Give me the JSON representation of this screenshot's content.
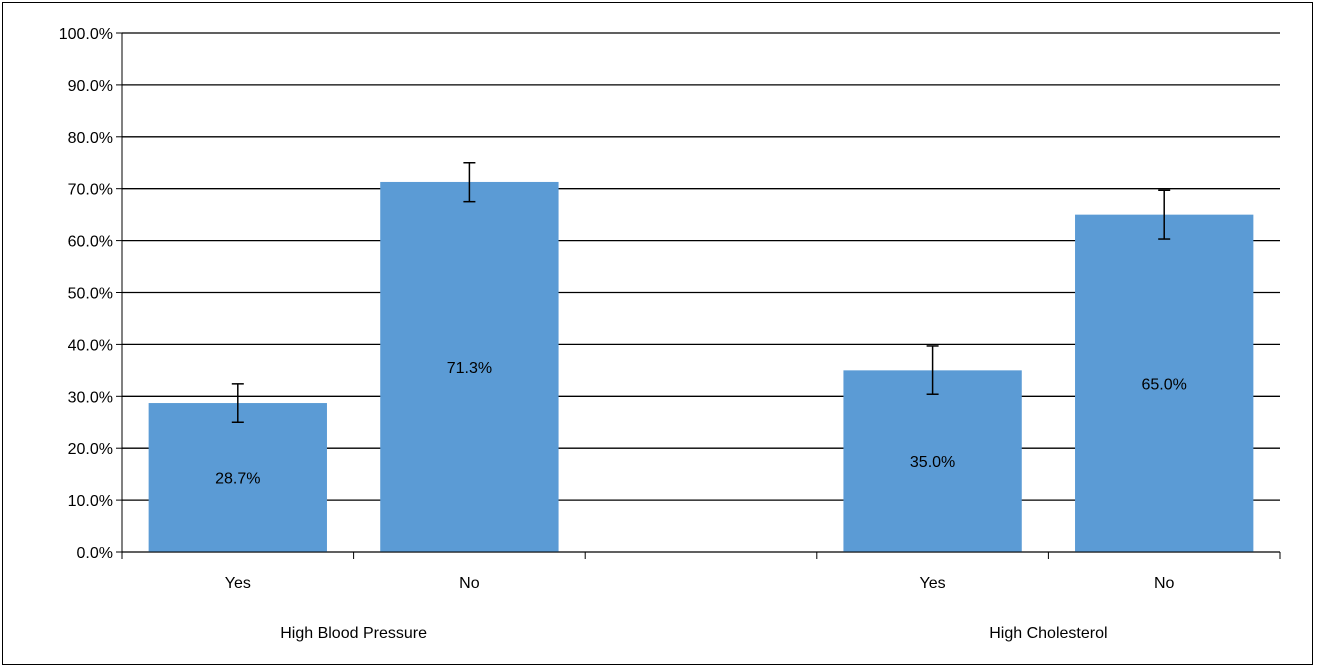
{
  "chart_data": {
    "type": "bar",
    "groups": [
      {
        "name": "High Blood Pressure",
        "categories": [
          "Yes",
          "No"
        ],
        "values": [
          28.7,
          71.3
        ],
        "error_low": [
          25.0,
          67.5
        ],
        "error_high": [
          32.4,
          75.0
        ],
        "labels": [
          "28.7%",
          "71.3%"
        ]
      },
      {
        "name": "High Cholesterol",
        "categories": [
          "Yes",
          "No"
        ],
        "values": [
          35.0,
          65.0
        ],
        "error_low": [
          30.4,
          60.3
        ],
        "error_high": [
          39.7,
          69.7
        ],
        "labels": [
          "35.0%",
          "65.0%"
        ]
      }
    ],
    "y_ticks": [
      "0.0%",
      "10.0%",
      "20.0%",
      "30.0%",
      "40.0%",
      "50.0%",
      "60.0%",
      "70.0%",
      "80.0%",
      "90.0%",
      "100.0%"
    ],
    "ylim": [
      0,
      100
    ],
    "grid": true,
    "legend": "none",
    "bar_color": "#5B9BD5"
  }
}
